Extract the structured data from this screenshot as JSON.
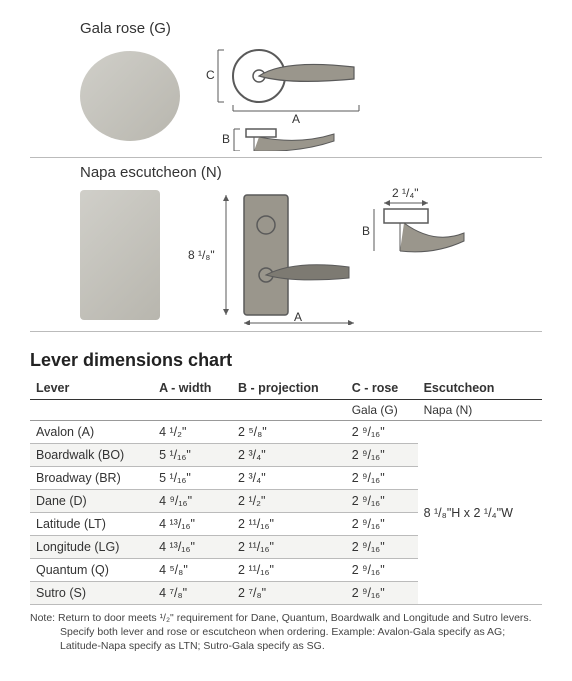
{
  "products": {
    "gala": {
      "label": "Gala rose (G)",
      "dims": {
        "A": "A",
        "B": "B",
        "C": "C"
      }
    },
    "napa": {
      "label": "Napa escutcheon (N)",
      "height_label": "8 ¹/₈\"",
      "width_label": "2 ¹/₄\"",
      "A": "A",
      "B": "B"
    }
  },
  "chart": {
    "title": "Lever dimensions chart",
    "columns": [
      "Lever",
      "A - width",
      "B - projection",
      "C - rose",
      "Escutcheon"
    ],
    "subhead": [
      "",
      "",
      "",
      "Gala (G)",
      "Napa (N)"
    ],
    "rows": [
      {
        "lever": "Avalon (A)",
        "a": "4 ¹/₂\"",
        "b": "2 ⁵/₈\"",
        "c": "2 ⁹/₁₆\""
      },
      {
        "lever": "Boardwalk (BO)",
        "a": "5 ¹/₁₆\"",
        "b": "2 ³/₄\"",
        "c": "2 ⁹/₁₆\""
      },
      {
        "lever": "Broadway (BR)",
        "a": "5 ¹/₁₆\"",
        "b": "2 ³/₄\"",
        "c": "2 ⁹/₁₆\""
      },
      {
        "lever": "Dane (D)",
        "a": "4 ⁹/₁₆\"",
        "b": "2 ¹/₂\"",
        "c": "2 ⁹/₁₆\""
      },
      {
        "lever": "Latitude (LT)",
        "a": "4 ¹³/₁₆\"",
        "b": "2 ¹¹/₁₆\"",
        "c": "2 ⁹/₁₆\""
      },
      {
        "lever": "Longitude (LG)",
        "a": "4 ¹³/₁₆\"",
        "b": "2 ¹¹/₁₆\"",
        "c": "2 ⁹/₁₆\""
      },
      {
        "lever": "Quantum (Q)",
        "a": "4 ⁵/₈\"",
        "b": "2 ¹¹/₁₆\"",
        "c": "2 ⁹/₁₆\""
      },
      {
        "lever": "Sutro (S)",
        "a": "4 ⁷/₈\"",
        "b": "2 ⁷/₈\"",
        "c": "2 ⁹/₁₆\""
      }
    ],
    "escutcheon_value": "8 ¹/₈\"H x 2 ¹/₄\"W"
  },
  "note": {
    "line1": "Note: Return to door meets ¹/₂\" requirement for Dane, Quantum, Boardwalk and Longitude and Sutro levers.",
    "line2": "Specify both lever and rose or escutcheon when ordering. Example: Avalon-Gala specify as AG; Latitude-Napa specify as LTN; Sutro-Gala specify as SG."
  },
  "colors": {
    "text": "#333333",
    "row_alt": "#f4f4f2",
    "border": "#bbbbbb",
    "diagram_stroke": "#5a5a5a",
    "diagram_fill": "#9a968c"
  }
}
